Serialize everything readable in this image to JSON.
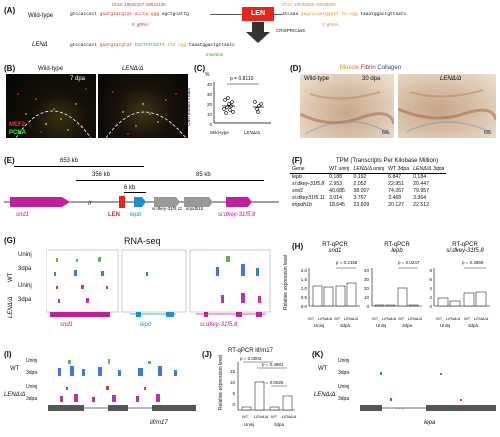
{
  "panelA": {
    "label": "(A)",
    "wt_label": "Wild-type",
    "chr_left": "Chr4: 19042107-19042130",
    "chr_right": "Chr4: 19038659-19038682",
    "seq_left_black": "gtccaccact",
    "seq_left_red": "gaatgtacgtat accta ggg",
    "seq_left_tail": "agctgcattg",
    "seq_right_head": "atcaaa",
    "seq_right_org": "gagcccaatggatt ta cgg",
    "seq_right_tail": "taaatggactgttaatc",
    "grna5": "5' gRNA",
    "grna3": "3' gRNA",
    "len_box": "LEN",
    "crispr": "CRISPR/Cas9",
    "mut_label": "LENΔ",
    "mut_black": "gtccaccact",
    "mut_red": "gaatgtacgtat",
    "mut_green": "CCGTATCCGTA",
    "mut_org": "tta cgg",
    "mut_tail": "taaatggactgttaatc",
    "insertion": "Insertion"
  },
  "panelB": {
    "label": "(B)",
    "wt": "Wild-type",
    "mut": "LENΔ/Δ",
    "dpa": "7 dpa",
    "mef2": "MEF2",
    "pcna": "PCNA"
  },
  "panelC": {
    "label": "(C)",
    "percent": "%",
    "pvalue": "p = 0.8110",
    "ylabel": "CM mitosis index",
    "yticks": [
      "40",
      "30",
      "20",
      "10",
      "0"
    ],
    "xlabels": [
      "Wild-type",
      "LENΔ/Δ"
    ]
  },
  "panelD": {
    "label": "(D)",
    "muscle": "Muscle",
    "fibrin": "Fibrin",
    "collagen": "Collagen",
    "wt": "Wild-type",
    "dpa": "30 dpa",
    "mut": "LENΔ/Δ",
    "n1": "6/6",
    "n2": "6/6"
  },
  "panelE": {
    "label": "(E)",
    "kb653": "653 kb",
    "kb356": "356 kb",
    "kb6": "6 kb",
    "kb85": "85 kb",
    "snd1": "snd1",
    "len": "LEN",
    "lepb": "lepb",
    "si31": "si:dkey-31f5.11",
    "impdh": "impdh1b",
    "si8": "si:dkey-31f5.8"
  },
  "panelF": {
    "label": "(F)",
    "title": "TPM (Transcripts Per Kilobase Million)",
    "head": [
      "Gene",
      "WT uninj",
      "LENΔ/Δ uninj",
      "WT 3dpa",
      "LENΔ/Δ 3dpa"
    ],
    "rows": [
      [
        "lepb",
        "0.188",
        "0.192",
        "6.847",
        "0.184"
      ],
      [
        "si:dkey-31f5.8",
        "2.953",
        "2.052",
        "22.951",
        "20.447"
      ],
      [
        "snd1",
        "40.685",
        "38.007",
        "74.267",
        "79.957"
      ],
      [
        "si:dkey31f5.11",
        "3.014",
        "3.767",
        "3.468",
        "3.364"
      ],
      [
        "impdh1b",
        "18.645",
        "23.609",
        "20.127",
        "22.512"
      ]
    ]
  },
  "panelG": {
    "label": "(G)",
    "title": "RNA-seq",
    "wt": "WT",
    "mut": "LENΔ/Δ",
    "uninj": "Uninj",
    "dpa3": "3dpa",
    "genes": [
      "snd1",
      "lepb",
      "si:dkey-31f5.8"
    ]
  },
  "panelH": {
    "label": "(H)",
    "ylabel": "Relative expression level",
    "xgroups": [
      "Uninj",
      "3dpa"
    ],
    "wt": "WT",
    "mut": "LENΔ/Δ",
    "plots": [
      {
        "title": "RT-qPCR",
        "gene": "snd1",
        "p": "p = 0.2158",
        "yticks": [
          "2.0",
          "1.5",
          "1.0",
          "0.5",
          "0.0"
        ]
      },
      {
        "title": "RT-qPCR",
        "gene": "lepb",
        "p": "p = 0.0247",
        "yticks": [
          "40",
          "30",
          "20",
          "10",
          "0"
        ]
      },
      {
        "title": "RT-qPCR",
        "gene": "si:dkey-31f5.8",
        "p": "p = 0.4858",
        "yticks": [
          "8",
          "6",
          "4",
          "2",
          "0"
        ]
      }
    ]
  },
  "panelI": {
    "label": "(I)",
    "wt": "WT",
    "mut": "LENΔ/Δ",
    "uninj": "Uninj",
    "dpa3": "3dpa",
    "gene": "lif/m17"
  },
  "panelJ": {
    "label": "(J)",
    "title": "RT-qPCR lif/m17",
    "ylabel": "Relative expression level",
    "p1": "p = 0.0003",
    "p2": "p = 0.4881",
    "p3": "p = 0.0026",
    "yticks": [
      "15",
      "10",
      "5",
      "0"
    ],
    "wt": "WT",
    "mut": "LENΔ/Δ",
    "xgroups": [
      "Uninj",
      "3dpa"
    ]
  },
  "panelK": {
    "label": "(K)",
    "wt": "WT",
    "mut": "LENΔ/Δ",
    "uninj": "Uninj",
    "dpa3": "3dpa",
    "gene": "lepa"
  }
}
